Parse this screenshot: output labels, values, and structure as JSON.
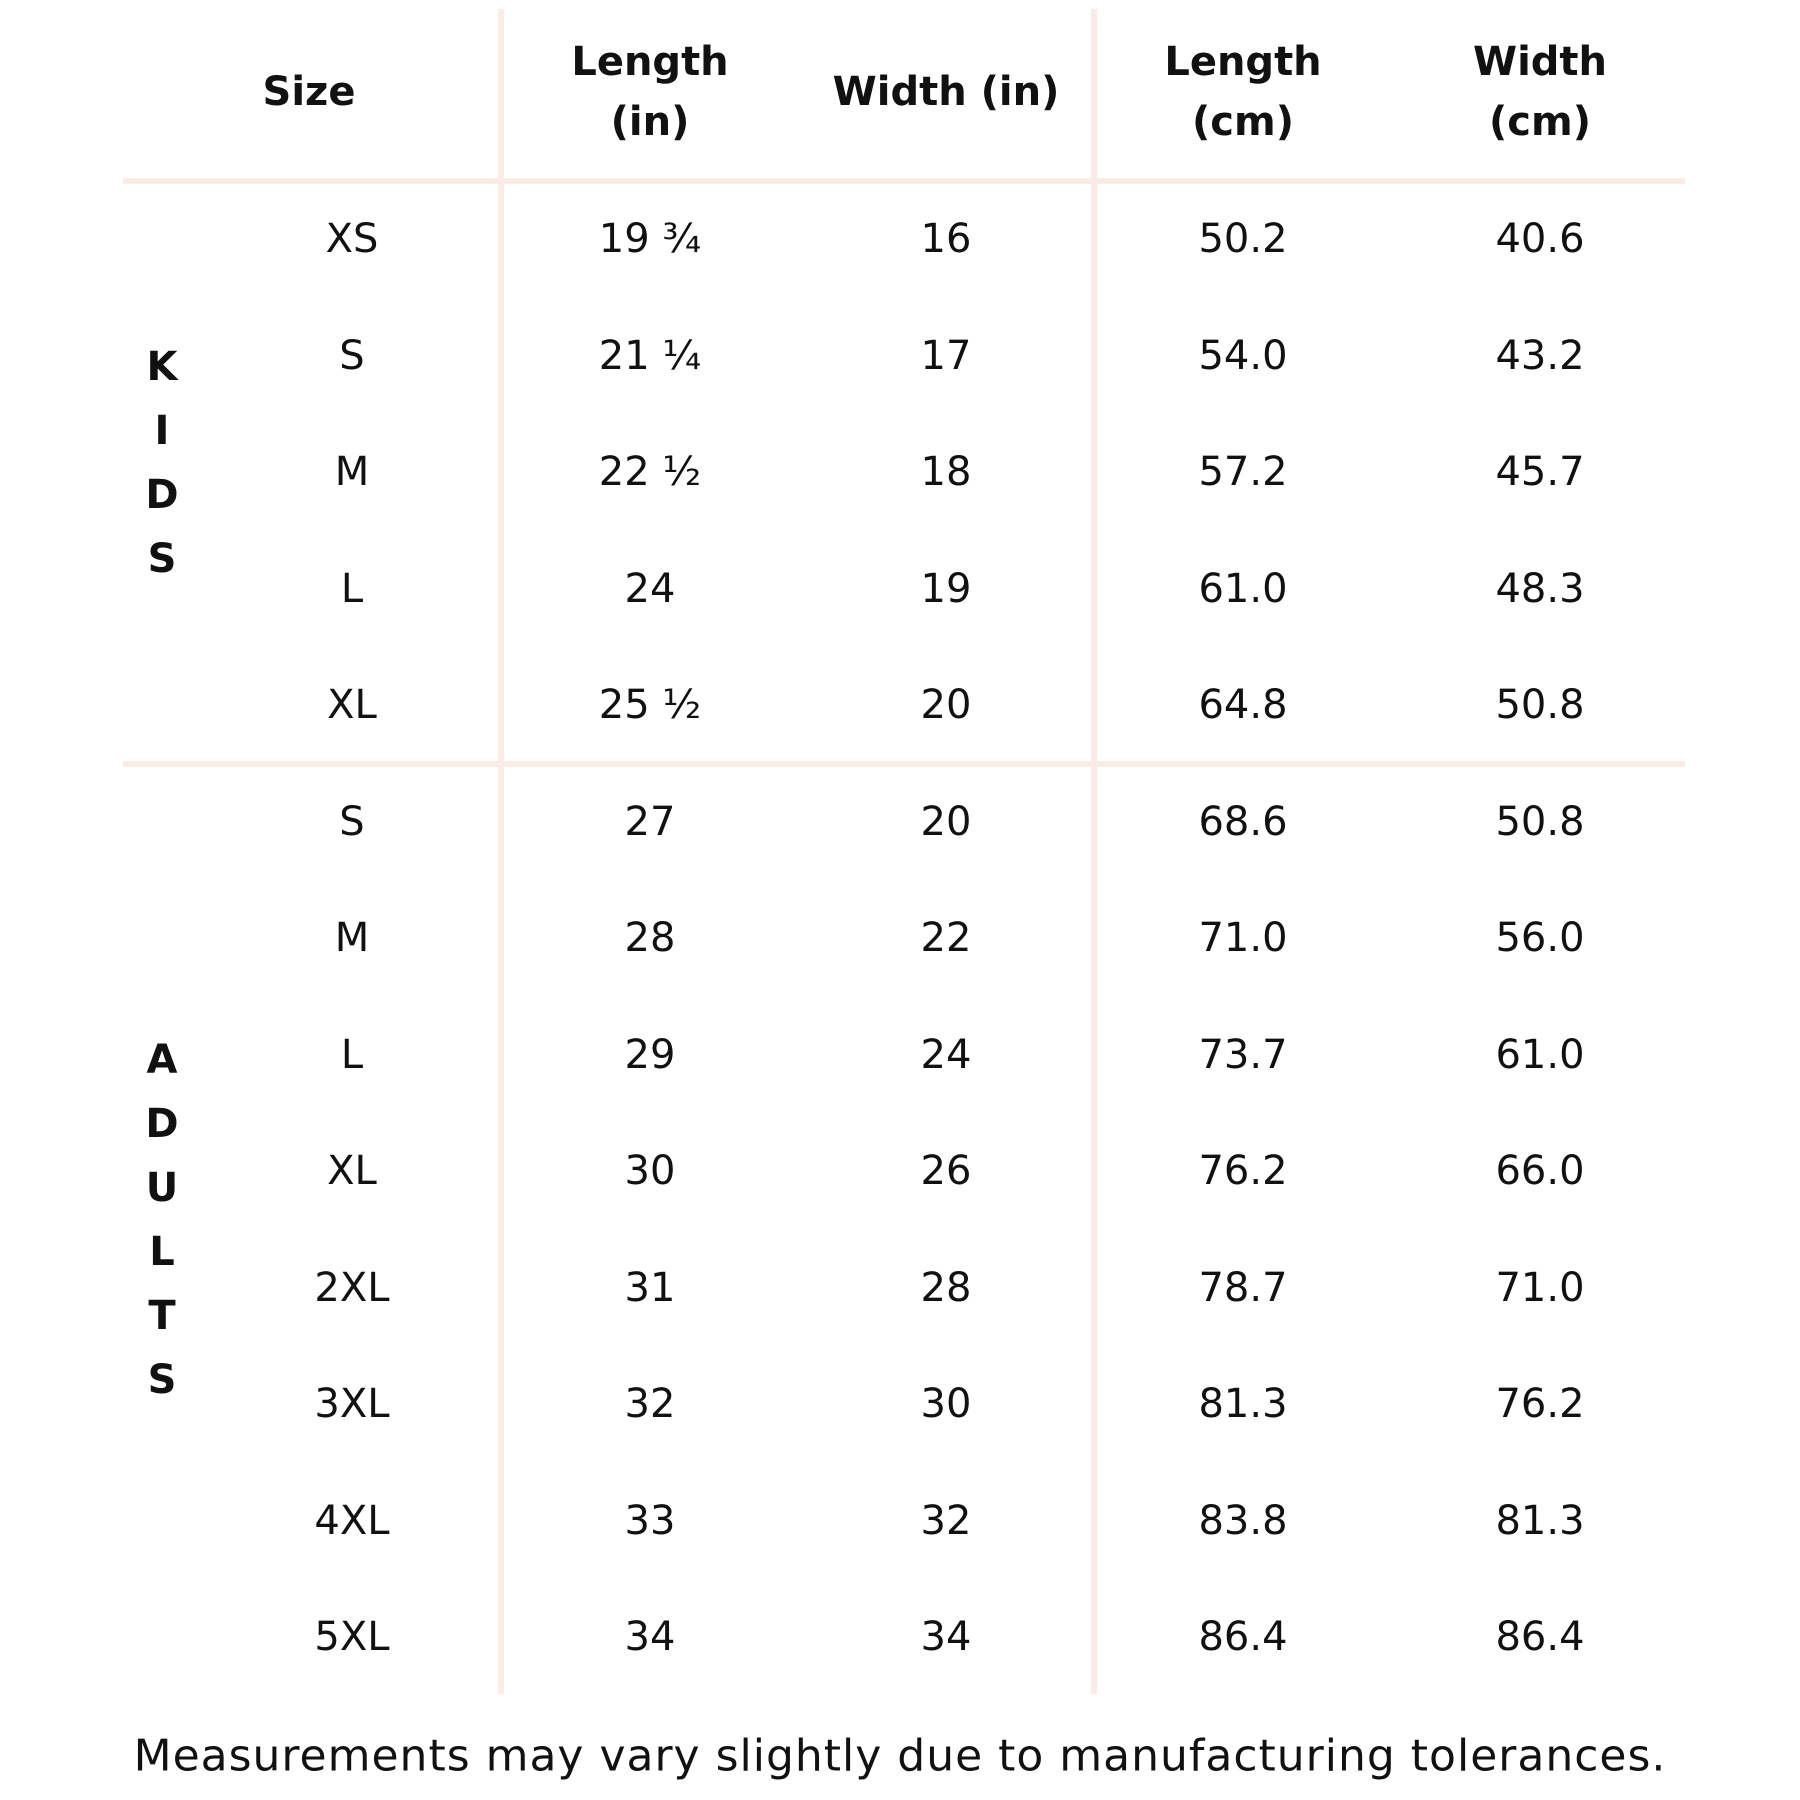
{
  "header": {
    "columns": [
      [
        "Size"
      ],
      [
        "Length",
        "(in)"
      ],
      [
        "Width (in)"
      ],
      [
        "Length",
        "(cm)"
      ],
      [
        "Width",
        "(cm)"
      ]
    ]
  },
  "groups": [
    {
      "label": "KIDS",
      "rows": [
        [
          "XS",
          "19 ¾",
          "16",
          "50.2",
          "40.6"
        ],
        [
          "S",
          "21 ¼",
          "17",
          "54.0",
          "43.2"
        ],
        [
          "M",
          "22 ½",
          "18",
          "57.2",
          "45.7"
        ],
        [
          "L",
          "24",
          "19",
          "61.0",
          "48.3"
        ],
        [
          "XL",
          "25 ½",
          "20",
          "64.8",
          "50.8"
        ]
      ]
    },
    {
      "label": "ADULTS",
      "rows": [
        [
          "S",
          "27",
          "20",
          "68.6",
          "50.8"
        ],
        [
          "M",
          "28",
          "22",
          "71.0",
          "56.0"
        ],
        [
          "L",
          "29",
          "24",
          "73.7",
          "61.0"
        ],
        [
          "XL",
          "30",
          "26",
          "76.2",
          "66.0"
        ],
        [
          "2XL",
          "31",
          "28",
          "78.7",
          "71.0"
        ],
        [
          "3XL",
          "32",
          "30",
          "81.3",
          "76.2"
        ],
        [
          "4XL",
          "33",
          "32",
          "83.8",
          "81.3"
        ],
        [
          "5XL",
          "34",
          "34",
          "86.4",
          "86.4"
        ]
      ]
    }
  ],
  "footer": {
    "note": "Measurements may vary slightly due to manufacturing tolerances."
  }
}
